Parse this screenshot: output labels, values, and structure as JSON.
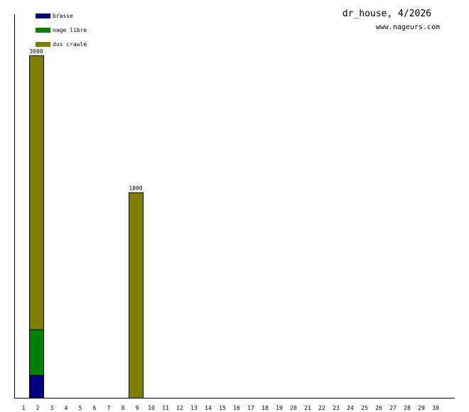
{
  "chart_data": {
    "type": "bar",
    "stacked": true,
    "title": "dr_house, 4/2026",
    "subtitle": "www.nageurs.com",
    "legend_position": "top-left",
    "grid": false,
    "categories": [
      "1",
      "2",
      "3",
      "4",
      "5",
      "6",
      "7",
      "8",
      "9",
      "10",
      "11",
      "12",
      "13",
      "14",
      "15",
      "16",
      "17",
      "18",
      "19",
      "20",
      "21",
      "22",
      "23",
      "24",
      "25",
      "26",
      "27",
      "28",
      "29",
      "30"
    ],
    "series": [
      {
        "name": "brasse",
        "color": "#000080",
        "values": [
          0,
          200,
          0,
          0,
          0,
          0,
          0,
          0,
          0,
          0,
          0,
          0,
          0,
          0,
          0,
          0,
          0,
          0,
          0,
          0,
          0,
          0,
          0,
          0,
          0,
          0,
          0,
          0,
          0,
          0
        ]
      },
      {
        "name": "nage libre",
        "color": "#008000",
        "values": [
          0,
          400,
          0,
          0,
          0,
          0,
          0,
          0,
          0,
          0,
          0,
          0,
          0,
          0,
          0,
          0,
          0,
          0,
          0,
          0,
          0,
          0,
          0,
          0,
          0,
          0,
          0,
          0,
          0,
          0
        ]
      },
      {
        "name": "dos crawlé",
        "color": "#808000",
        "values": [
          0,
          2400,
          0,
          0,
          0,
          0,
          0,
          0,
          1800,
          0,
          0,
          0,
          0,
          0,
          0,
          0,
          0,
          0,
          0,
          0,
          0,
          0,
          0,
          0,
          0,
          0,
          0,
          0,
          0,
          0
        ]
      }
    ],
    "totals": [
      {
        "category": "2",
        "label": "3000"
      },
      {
        "category": "9",
        "label": "1800"
      }
    ],
    "ylim": [
      0,
      3360
    ]
  }
}
